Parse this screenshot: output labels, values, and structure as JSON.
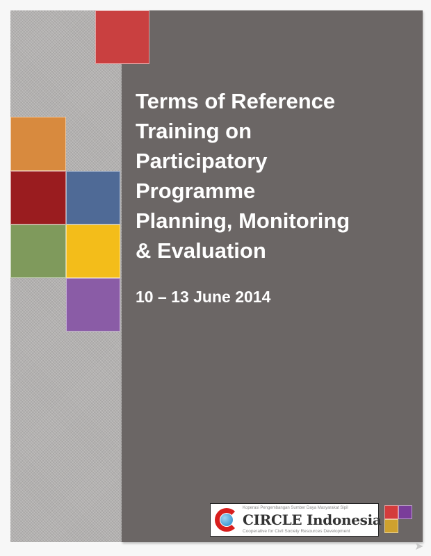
{
  "title_lines": [
    "Terms of Reference",
    "Training on",
    "Participatory",
    "Programme",
    "Planning, Monitoring",
    "& Evaluation"
  ],
  "date": "10 – 13 June 2014",
  "logo": {
    "top_text": "Koperasi Pengembangan Sumber Daya Masyarakat Sipil",
    "name": "CIRCLE Indonesia",
    "subtitle": "Cooperative for Civil Society Resources Development"
  },
  "colors": {
    "panel": "#6b6665",
    "red": "#c94040",
    "orange": "#d88a3e",
    "dark_red": "#9a1c1f",
    "blue": "#4f6a96",
    "green": "#7f9a5c",
    "yellow": "#f3bd1a",
    "purple": "#8a5ca6"
  },
  "next_icon": "arrow-right-icon"
}
